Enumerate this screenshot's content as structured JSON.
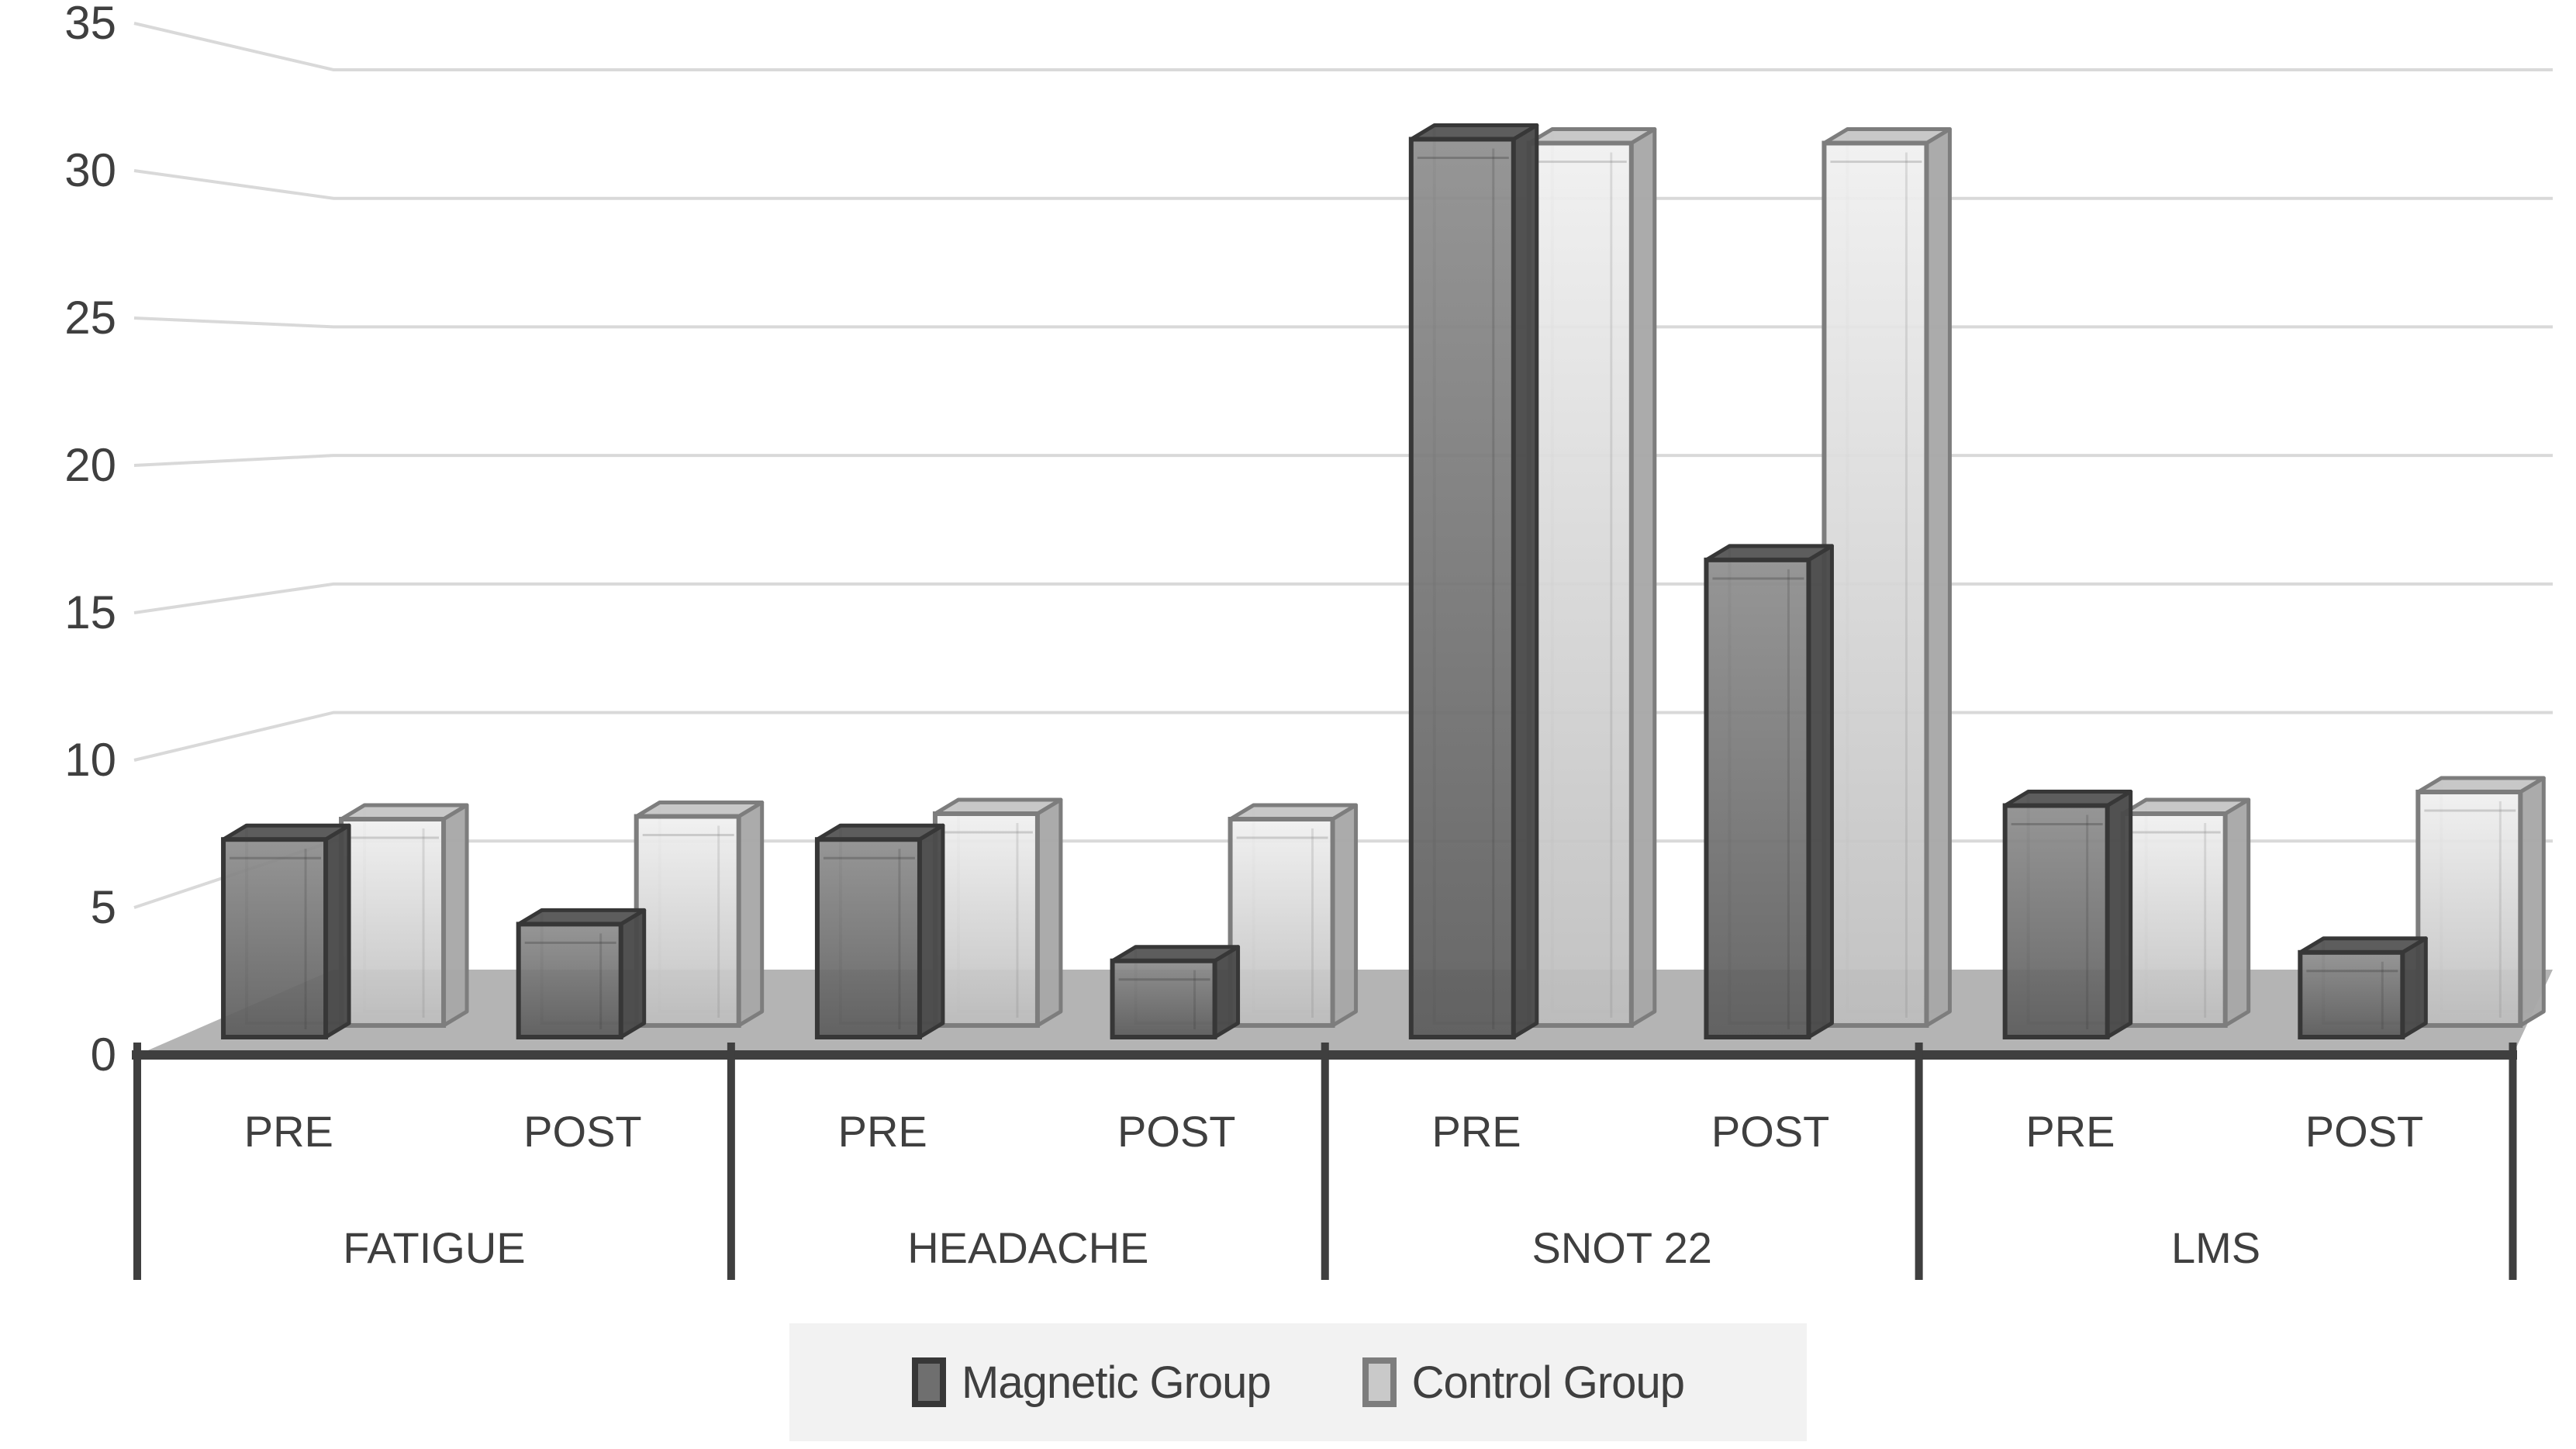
{
  "chart_data": {
    "type": "bar",
    "style": "3d-column",
    "title": "",
    "categories": [
      "FATIGUE",
      "HEADACHE",
      "SNOT 22",
      "LMS"
    ],
    "sub_categories": [
      "PRE",
      "POST"
    ],
    "columns": [
      "FATIGUE PRE",
      "FATIGUE POST",
      "HEADACHE PRE",
      "HEADACHE POST",
      "SNOT 22 PRE",
      "SNOT 22 POST",
      "LMS PRE",
      "LMS POST"
    ],
    "series": [
      {
        "name": "Magnetic Group",
        "values": [
          7.0,
          4.0,
          7.0,
          2.7,
          31.8,
          16.9,
          8.2,
          3.0
        ]
      },
      {
        "name": "Control Group",
        "values": [
          7.6,
          7.7,
          7.8,
          7.6,
          32.5,
          32.5,
          7.8,
          8.6
        ]
      }
    ],
    "ylim": [
      0,
      35
    ],
    "yticks": [
      0,
      5,
      10,
      15,
      20,
      25,
      30,
      35
    ],
    "grid": true,
    "legend_position": "bottom",
    "colors": {
      "magnetic_fill_top": "#8e8e8e",
      "magnetic_fill_bottom": "#5c5c5c",
      "magnetic_top_face": "#565656",
      "magnetic_side_face": "#4a4a4a",
      "magnetic_border": "#373737",
      "control_fill_top": "#f0f0f0",
      "control_fill_bottom": "#bdbdbd",
      "control_top_face": "#c6c6c6",
      "control_side_face": "#a8a8a8",
      "control_border": "#7d7d7d",
      "gridline": "#d9d9d9",
      "floor": "#b4b4b4",
      "axis_line": "#3f3f3f",
      "text": "#3f3f3f",
      "legend_bg": "#f2f2f2",
      "background": "#ffffff"
    }
  },
  "legend": {
    "magnetic_label": "Magnetic Group",
    "control_label": "Control Group"
  }
}
